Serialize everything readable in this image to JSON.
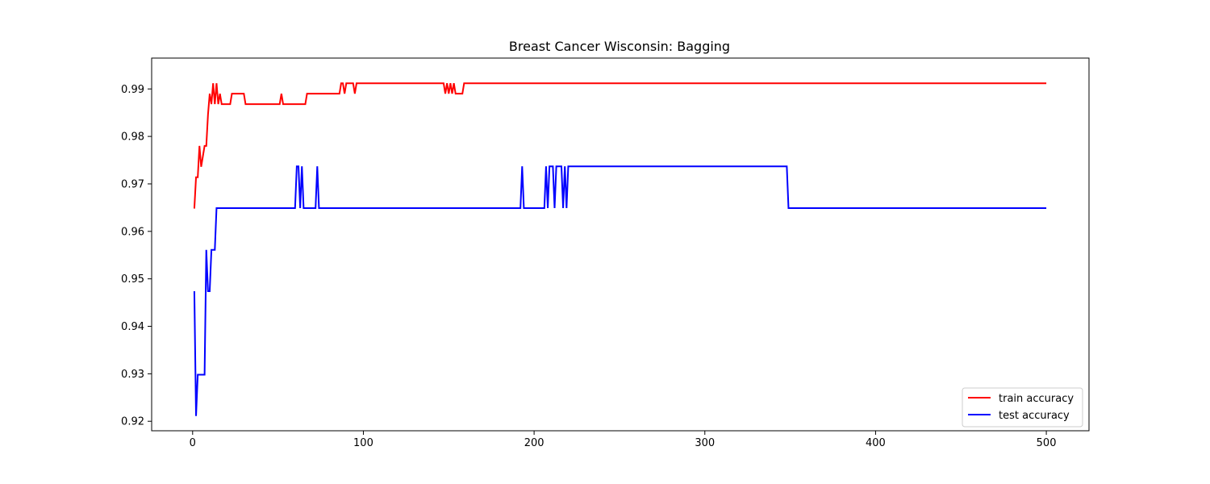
{
  "chart_data": {
    "type": "line",
    "title": "Breast Cancer Wisconsin: Bagging",
    "xlabel": "",
    "ylabel": "",
    "xlim": [
      -24,
      525
    ],
    "ylim": [
      0.918,
      0.9965
    ],
    "xticks": [
      0,
      100,
      200,
      300,
      400,
      500
    ],
    "yticks": [
      0.92,
      0.93,
      0.94,
      0.95,
      0.96,
      0.97,
      0.98,
      0.99
    ],
    "ytick_labels": [
      "0.92",
      "0.93",
      "0.94",
      "0.95",
      "0.96",
      "0.97",
      "0.98",
      "0.99"
    ],
    "grid": false,
    "legend_position": "lower-right",
    "series": [
      {
        "name": "train accuracy",
        "color": "#ff0000",
        "points": [
          [
            1,
            0.9648
          ],
          [
            2,
            0.9714
          ],
          [
            3,
            0.9714
          ],
          [
            4,
            0.978
          ],
          [
            5,
            0.9736
          ],
          [
            6,
            0.9758
          ],
          [
            7,
            0.978
          ],
          [
            8,
            0.978
          ],
          [
            9,
            0.9846
          ],
          [
            10,
            0.989
          ],
          [
            11,
            0.9868
          ],
          [
            12,
            0.9912
          ],
          [
            13,
            0.9868
          ],
          [
            14,
            0.9912
          ],
          [
            15,
            0.9868
          ],
          [
            16,
            0.989
          ],
          [
            17,
            0.9868
          ],
          [
            18,
            0.9868
          ],
          [
            22,
            0.9868
          ],
          [
            23,
            0.989
          ],
          [
            30,
            0.989
          ],
          [
            31,
            0.9868
          ],
          [
            51,
            0.9868
          ],
          [
            52,
            0.989
          ],
          [
            53,
            0.9868
          ],
          [
            66,
            0.9868
          ],
          [
            67,
            0.989
          ],
          [
            86,
            0.989
          ],
          [
            87,
            0.9912
          ],
          [
            88,
            0.9912
          ],
          [
            89,
            0.989
          ],
          [
            90,
            0.9912
          ],
          [
            94,
            0.9912
          ],
          [
            95,
            0.989
          ],
          [
            96,
            0.9912
          ],
          [
            147,
            0.9912
          ],
          [
            148,
            0.989
          ],
          [
            149,
            0.9912
          ],
          [
            150,
            0.989
          ],
          [
            151,
            0.9912
          ],
          [
            152,
            0.989
          ],
          [
            153,
            0.9912
          ],
          [
            154,
            0.989
          ],
          [
            158,
            0.989
          ],
          [
            159,
            0.9912
          ],
          [
            500,
            0.9912
          ]
        ]
      },
      {
        "name": "test accuracy",
        "color": "#0000ff",
        "points": [
          [
            1,
            0.9474
          ],
          [
            2,
            0.9211
          ],
          [
            3,
            0.9298
          ],
          [
            7,
            0.9298
          ],
          [
            8,
            0.9561
          ],
          [
            9,
            0.9474
          ],
          [
            10,
            0.9474
          ],
          [
            11,
            0.9561
          ],
          [
            13,
            0.9561
          ],
          [
            14,
            0.9649
          ],
          [
            60,
            0.9649
          ],
          [
            61,
            0.9737
          ],
          [
            62,
            0.9737
          ],
          [
            63,
            0.9649
          ],
          [
            64,
            0.9737
          ],
          [
            65,
            0.9649
          ],
          [
            72,
            0.9649
          ],
          [
            73,
            0.9737
          ],
          [
            74,
            0.9649
          ],
          [
            192,
            0.9649
          ],
          [
            193,
            0.9737
          ],
          [
            194,
            0.9649
          ],
          [
            206,
            0.9649
          ],
          [
            207,
            0.9737
          ],
          [
            208,
            0.9649
          ],
          [
            209,
            0.9737
          ],
          [
            211,
            0.9737
          ],
          [
            212,
            0.9649
          ],
          [
            213,
            0.9737
          ],
          [
            216,
            0.9737
          ],
          [
            217,
            0.9649
          ],
          [
            218,
            0.9737
          ],
          [
            219,
            0.9649
          ],
          [
            220,
            0.9737
          ],
          [
            348,
            0.9737
          ],
          [
            349,
            0.9649
          ],
          [
            500,
            0.9649
          ]
        ]
      }
    ]
  }
}
